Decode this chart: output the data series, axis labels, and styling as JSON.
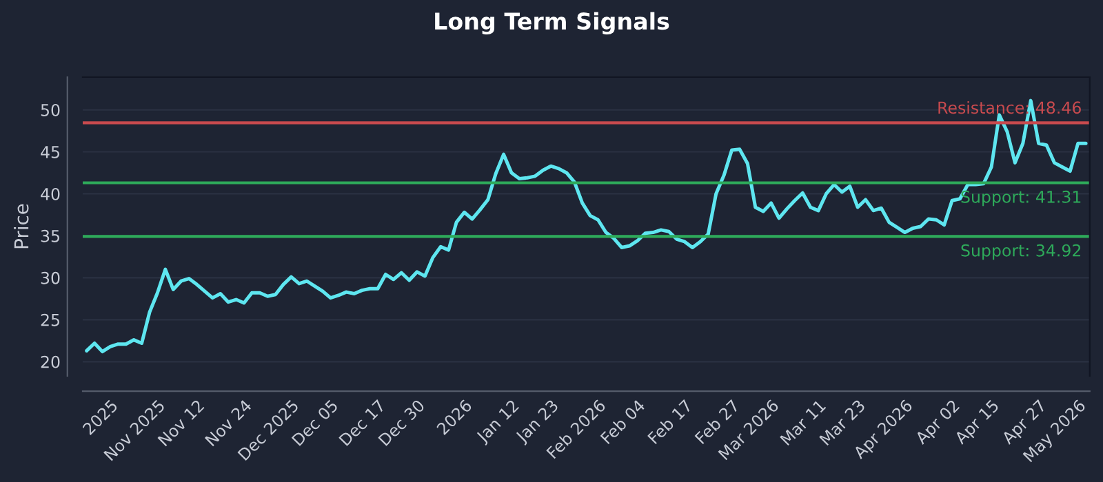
{
  "chart_data": {
    "type": "line",
    "title": "Long Term Signals",
    "ylabel": "Price",
    "categories": [
      null,
      null,
      null,
      "2025",
      null,
      null,
      null,
      null,
      null,
      "Nov 2025",
      null,
      null,
      null,
      null,
      "Nov 12",
      null,
      null,
      null,
      null,
      null,
      "Nov 24",
      null,
      null,
      null,
      null,
      null,
      "Dec 2025",
      null,
      null,
      null,
      null,
      "Dec 05",
      null,
      null,
      null,
      null,
      null,
      "Dec 17",
      null,
      null,
      null,
      null,
      "Dec 30",
      null,
      null,
      null,
      null,
      null,
      "2026",
      null,
      null,
      null,
      null,
      null,
      "Jan 12",
      null,
      null,
      null,
      null,
      "Jan 23",
      null,
      null,
      null,
      null,
      null,
      "Feb 2026",
      null,
      null,
      null,
      null,
      "Feb 04",
      null,
      null,
      null,
      null,
      null,
      "Feb 17",
      null,
      null,
      null,
      null,
      null,
      "Feb 27",
      null,
      null,
      null,
      null,
      "Mar 2026",
      null,
      null,
      null,
      null,
      null,
      "Mar 11",
      null,
      null,
      null,
      null,
      "Mar 23",
      null,
      null,
      null,
      null,
      null,
      "Apr 2026",
      null,
      null,
      null,
      null,
      null,
      "Apr 02",
      null,
      null,
      null,
      null,
      "Apr 15",
      null,
      null,
      null,
      null,
      null,
      "Apr 27",
      null,
      null,
      null,
      null,
      "May 2026",
      null
    ],
    "series": [
      {
        "color": "#5ee6f0",
        "values": [
          21.3,
          22.2,
          21.2,
          21.8,
          22.1,
          22.1,
          22.6,
          22.2,
          25.9,
          28.2,
          31.0,
          28.6,
          29.6,
          29.9,
          29.2,
          28.4,
          27.6,
          28.1,
          27.1,
          27.4,
          27.0,
          28.2,
          28.2,
          27.8,
          28.0,
          29.2,
          30.1,
          29.3,
          29.6,
          29.0,
          28.4,
          27.6,
          27.9,
          28.3,
          28.1,
          28.5,
          28.7,
          28.7,
          30.4,
          29.8,
          30.6,
          29.7,
          30.7,
          30.2,
          32.4,
          33.7,
          33.3,
          36.6,
          37.8,
          37.0,
          38.1,
          39.3,
          42.4,
          44.7,
          42.5,
          41.8,
          41.9,
          42.1,
          42.8,
          43.3,
          43.0,
          42.5,
          41.4,
          38.9,
          37.4,
          36.9,
          35.4,
          34.7,
          33.6,
          33.8,
          34.4,
          35.3,
          35.4,
          35.7,
          35.5,
          34.6,
          34.3,
          33.6,
          34.3,
          35.2,
          40.0,
          42.2,
          45.2,
          45.3,
          43.6,
          38.4,
          37.9,
          38.9,
          37.1,
          38.2,
          39.2,
          40.1,
          38.4,
          38.0,
          40.0,
          41.1,
          40.2,
          40.9,
          38.4,
          39.3,
          38.0,
          38.3,
          36.6,
          36.0,
          35.4,
          35.9,
          36.1,
          37.0,
          36.9,
          36.3,
          39.2,
          39.4,
          41.1,
          41.1,
          41.2,
          43.2,
          49.4,
          47.4,
          43.7,
          46.0,
          51.1,
          46.0,
          45.8,
          43.7,
          43.2,
          42.7,
          46.0,
          46.0
        ]
      }
    ],
    "ylim": [
      18.3,
      53.9
    ],
    "yticks": [
      20,
      25,
      30,
      35,
      40,
      45,
      50
    ],
    "grid": "y",
    "marker": "none",
    "line_style": "solid",
    "ref_lines": [
      {
        "axis": "y",
        "value": 48.46,
        "label": "Resistance: 48.46",
        "color": "#c84a4e"
      },
      {
        "axis": "y",
        "value": 41.31,
        "label": "Support: 41.31",
        "color": "#2eaa5a"
      },
      {
        "axis": "y",
        "value": 34.92,
        "label": "Support: 34.92",
        "color": "#2eaa5a"
      }
    ]
  }
}
